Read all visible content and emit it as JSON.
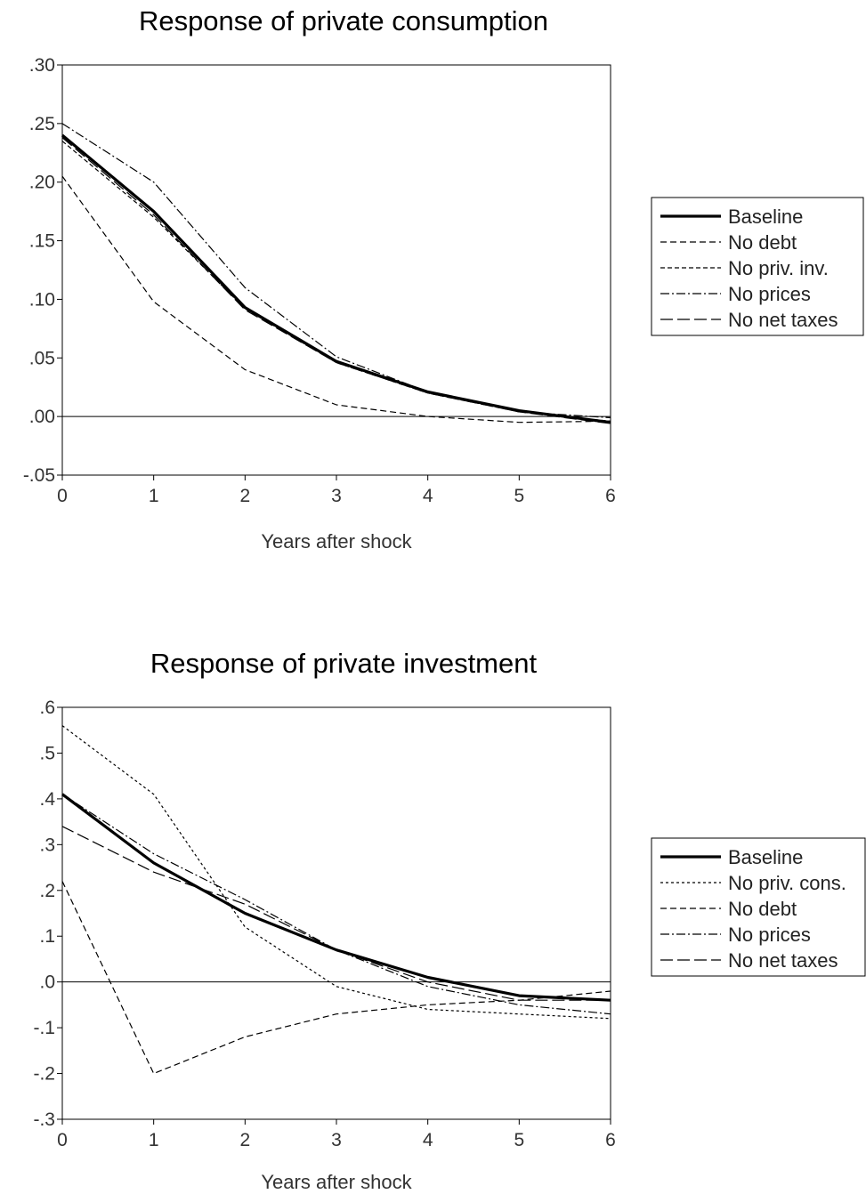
{
  "chart_data": [
    {
      "type": "line",
      "title": "Response of private consumption",
      "xlabel": "Years after shock",
      "ylabel": "",
      "x": [
        0,
        1,
        2,
        3,
        4,
        5,
        6
      ],
      "xlim": [
        0,
        6
      ],
      "ylim": [
        -0.05,
        0.3
      ],
      "yticks": [
        -0.05,
        0.0,
        0.05,
        0.1,
        0.15,
        0.2,
        0.25,
        0.3
      ],
      "ytick_labels": [
        "-.05",
        ".00",
        ".05",
        ".10",
        ".15",
        ".20",
        ".25",
        ".30"
      ],
      "xtick_labels": [
        "0",
        "1",
        "2",
        "3",
        "4",
        "5",
        "6"
      ],
      "legend_position": "right",
      "series": [
        {
          "name": "Baseline",
          "style": "solid-thick",
          "values": [
            0.24,
            0.175,
            0.093,
            0.047,
            0.021,
            0.005,
            -0.005
          ]
        },
        {
          "name": "No debt",
          "style": "dashed",
          "values": [
            0.205,
            0.098,
            0.04,
            0.01,
            0.0,
            -0.005,
            -0.004
          ]
        },
        {
          "name": "No priv. inv.",
          "style": "dashed-fine",
          "values": [
            0.235,
            0.17,
            0.092,
            0.046,
            0.02,
            0.004,
            -0.004
          ]
        },
        {
          "name": "No prices",
          "style": "dash-dot",
          "values": [
            0.25,
            0.2,
            0.11,
            0.051,
            0.021,
            0.004,
            -0.001
          ]
        },
        {
          "name": "No net taxes",
          "style": "long-dash",
          "values": [
            0.238,
            0.172,
            0.091,
            0.046,
            0.02,
            0.004,
            -0.006
          ]
        }
      ]
    },
    {
      "type": "line",
      "title": "Response of private investment",
      "xlabel": "Years after shock",
      "ylabel": "",
      "x": [
        0,
        1,
        2,
        3,
        4,
        5,
        6
      ],
      "xlim": [
        0,
        6
      ],
      "ylim": [
        -0.3,
        0.6
      ],
      "yticks": [
        -0.3,
        -0.2,
        -0.1,
        0.0,
        0.1,
        0.2,
        0.3,
        0.4,
        0.5,
        0.6
      ],
      "ytick_labels": [
        "-.3",
        "-.2",
        "-.1",
        ".0",
        ".1",
        ".2",
        ".3",
        ".4",
        ".5",
        ".6"
      ],
      "xtick_labels": [
        "0",
        "1",
        "2",
        "3",
        "4",
        "5",
        "6"
      ],
      "legend_position": "right",
      "series": [
        {
          "name": "Baseline",
          "style": "solid-thick",
          "values": [
            0.41,
            0.26,
            0.15,
            0.07,
            0.01,
            -0.03,
            -0.04
          ]
        },
        {
          "name": "No priv. cons.",
          "style": "dotted",
          "values": [
            0.56,
            0.41,
            0.12,
            -0.01,
            -0.06,
            -0.07,
            -0.08
          ]
        },
        {
          "name": "No debt",
          "style": "dashed",
          "values": [
            0.22,
            -0.2,
            -0.12,
            -0.07,
            -0.05,
            -0.04,
            -0.02
          ]
        },
        {
          "name": "No prices",
          "style": "dash-dot",
          "values": [
            0.41,
            0.28,
            0.18,
            0.07,
            -0.01,
            -0.05,
            -0.07
          ]
        },
        {
          "name": "No net taxes",
          "style": "long-dash",
          "values": [
            0.34,
            0.24,
            0.17,
            0.07,
            0.0,
            -0.04,
            -0.04
          ]
        }
      ]
    }
  ]
}
